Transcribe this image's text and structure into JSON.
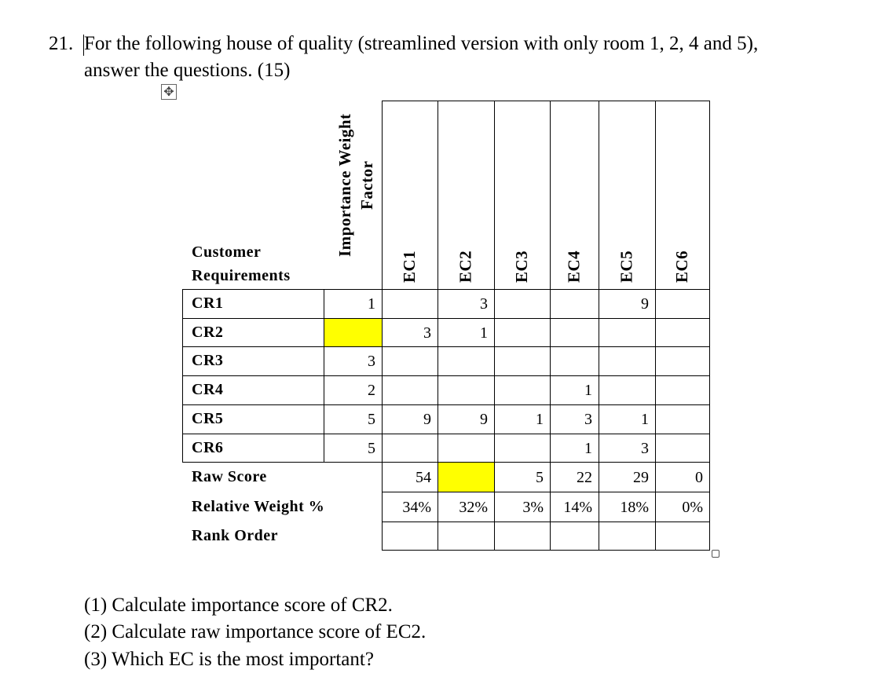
{
  "question": {
    "number": "21.",
    "lines": [
      "For the following house of quality (streamlined version with only room 1, 2, 4 and 5),",
      "answer the questions. (15)"
    ]
  },
  "table": {
    "customer_label": "Customer Requirements",
    "weight_label": "Importance Weight Factor",
    "ecs": [
      "EC1",
      "EC2",
      "EC3",
      "EC4",
      "EC5",
      "EC6"
    ],
    "rows": [
      {
        "label": "CR1",
        "weight": 1,
        "cells": [
          null,
          3,
          null,
          null,
          9,
          null
        ]
      },
      {
        "label": "CR2",
        "weight": null,
        "cells": [
          3,
          1,
          null,
          null,
          null,
          null
        ]
      },
      {
        "label": "CR3",
        "weight": 3,
        "cells": [
          null,
          null,
          null,
          null,
          null,
          null
        ]
      },
      {
        "label": "CR4",
        "weight": 2,
        "cells": [
          null,
          null,
          null,
          1,
          null,
          null
        ]
      },
      {
        "label": "CR5",
        "weight": 5,
        "cells": [
          9,
          9,
          1,
          3,
          1,
          null
        ]
      },
      {
        "label": "CR6",
        "weight": 5,
        "cells": [
          null,
          null,
          null,
          1,
          3,
          null
        ]
      }
    ],
    "raw_score": {
      "label": "Raw Score",
      "values": [
        54,
        null,
        5,
        22,
        29,
        0
      ]
    },
    "relative_weight": {
      "label": "Relative Weight %",
      "values": [
        "34%",
        "32%",
        "3%",
        "14%",
        "18%",
        "0%"
      ]
    },
    "rank_order": {
      "label": "Rank Order"
    }
  },
  "questions": [
    "(1) Calculate importance score of CR2.",
    "(2) Calculate raw importance score of EC2.",
    "(3) Which EC is the most important?"
  ]
}
